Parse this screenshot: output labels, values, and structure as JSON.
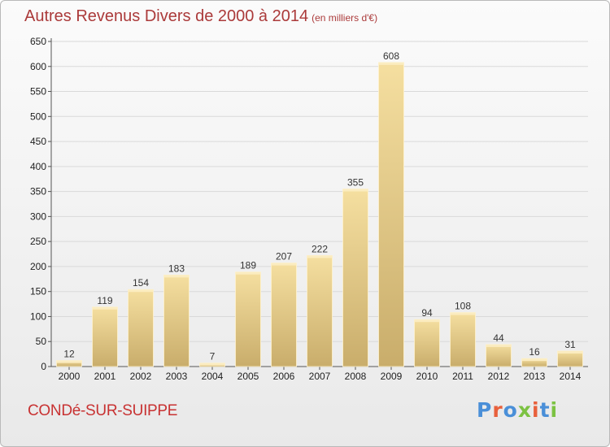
{
  "header": {
    "title": "Autres Revenus Divers de 2000 à 2014",
    "unit": "(en milliers d'€)"
  },
  "footer": {
    "town": "CONDé-SUR-SUIPPE",
    "brand": "Proxiti"
  },
  "colors": {
    "title": "#ab3a3a",
    "town": "#c83232",
    "bar_light": "#f5dfa0",
    "bar_dark": "#c9ad6b",
    "grid": "#d9d9d9",
    "brand_letters": [
      "#4a8fd8",
      "#e8603c",
      "#4a8fd8",
      "#7cc242",
      "#e8603c",
      "#4a8fd8",
      "#7cc242"
    ]
  },
  "chart_data": {
    "type": "bar",
    "title": "Autres Revenus Divers de 2000 à 2014",
    "subtitle": "(en milliers d'€)",
    "categories": [
      "2000",
      "2001",
      "2002",
      "2003",
      "2004",
      "2005",
      "2006",
      "2007",
      "2008",
      "2009",
      "2010",
      "2011",
      "2012",
      "2013",
      "2014"
    ],
    "values": [
      12,
      119,
      154,
      183,
      7,
      189,
      207,
      222,
      355,
      608,
      94,
      108,
      44,
      16,
      31
    ],
    "ylim": [
      0,
      650
    ],
    "yticks": [
      0,
      50,
      100,
      150,
      200,
      250,
      300,
      350,
      400,
      450,
      500,
      550,
      600,
      650
    ],
    "grid": true,
    "data_labels": true
  }
}
